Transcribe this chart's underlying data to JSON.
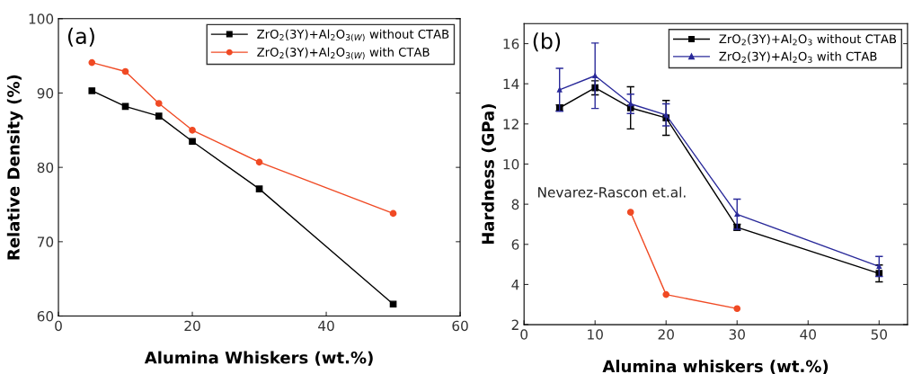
{
  "chart_data": [
    {
      "type": "line",
      "annotations": [
        "(a)"
      ],
      "xlabel": "Alumina Whiskers (wt.%)",
      "ylabel": "Relative Density (%)",
      "x": [
        5,
        10,
        15,
        20,
        30,
        50
      ],
      "series": [
        {
          "name": "ZrO$_{2}$(3Y)+Al$_{2}$O$_{3(W)}$ without CTAB",
          "color": "#000000",
          "marker": "square",
          "values": [
            90.3,
            88.2,
            86.9,
            83.5,
            77.1,
            61.6
          ]
        },
        {
          "name": "ZrO$_{2}$(3Y)+Al$_{2}$O$_{3(W)}$ with CTAB",
          "color": "#f04a24",
          "marker": "circle",
          "values": [
            94.1,
            92.9,
            88.6,
            85.0,
            80.7,
            73.8
          ]
        }
      ],
      "xlim": [
        0,
        60
      ],
      "xticks": [
        0,
        20,
        40,
        60
      ],
      "ylim": [
        60,
        100
      ],
      "yticks": [
        60,
        70,
        80,
        90,
        100
      ],
      "legend": "top right",
      "grid": false
    },
    {
      "type": "line",
      "annotations": [
        "(b)",
        {
          "text": "Nevarez-Rascon et.al.",
          "x": 15,
          "y": 7.6
        }
      ],
      "xlabel": "Alumina whiskers (wt.%)",
      "ylabel": "Hardness (GPa)",
      "x": [
        5,
        10,
        15,
        20,
        30,
        50
      ],
      "series": [
        {
          "name": "ZrO$_{2}$(3Y)+Al$_{2}$O$_{3}$ without CTAB",
          "color": "#000000",
          "marker": "square",
          "values": [
            12.8,
            13.8,
            12.8,
            12.3,
            6.85,
            4.55
          ],
          "errors": [
            0.15,
            0.35,
            1.05,
            0.87,
            0.15,
            0.42
          ]
        },
        {
          "name": "ZrO$_{2}$(3Y)+Al$_{2}$O$_{3}$ with CTAB",
          "color": "#2a2a9a",
          "marker": "triangle",
          "values": [
            13.7,
            14.4,
            13.0,
            12.45,
            7.5,
            4.9
          ],
          "errors": [
            1.07,
            1.63,
            0.48,
            0.55,
            0.75,
            0.5
          ]
        },
        {
          "color": "#f04a24",
          "marker": "circle",
          "x": [
            15,
            20,
            30
          ],
          "values": [
            7.6,
            3.5,
            2.8
          ]
        }
      ],
      "xlim": [
        0,
        54
      ],
      "xticks": [
        0,
        10,
        20,
        30,
        40,
        50
      ],
      "ylim": [
        2,
        17
      ],
      "yticks": [
        2,
        4,
        6,
        8,
        10,
        12,
        14,
        16
      ],
      "legend": "top right",
      "grid": false
    }
  ]
}
